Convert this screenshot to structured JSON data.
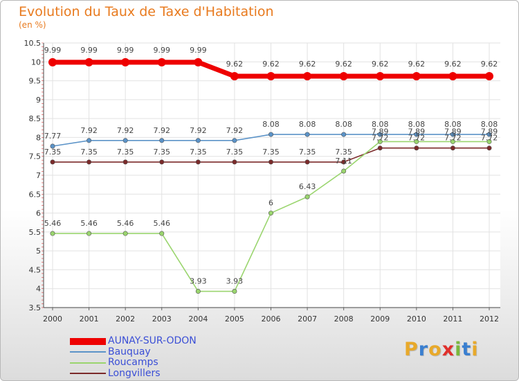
{
  "chart_data": {
    "type": "line",
    "title": "Evolution du Taux de Taxe d'Habitation",
    "ylabel": "(en %)",
    "xlabel": "",
    "x": [
      "2000",
      "2001",
      "2002",
      "2003",
      "2004",
      "2005",
      "2006",
      "2007",
      "2008",
      "2009",
      "2010",
      "2011",
      "2012"
    ],
    "ylim": [
      3.5,
      10.5
    ],
    "yticks": [
      "3.5",
      "4",
      "4.5",
      "5",
      "5.5",
      "6",
      "6.5",
      "7",
      "7.5",
      "8",
      "8.5",
      "9",
      "9.5",
      "10",
      "10.5"
    ],
    "series": [
      {
        "name": "AUNAY-SUR-ODON",
        "color": "#ee0000",
        "values": [
          9.99,
          9.99,
          9.99,
          9.99,
          9.99,
          9.62,
          9.62,
          9.62,
          9.62,
          9.62,
          9.62,
          9.62,
          9.62
        ],
        "labels": [
          "9.99",
          "9.99",
          "9.99",
          "9.99",
          "9.99",
          "9.62",
          "9.62",
          "9.62",
          "9.62",
          "9.62",
          "9.62",
          "9.62",
          "9.62"
        ]
      },
      {
        "name": "Bauquay",
        "color": "#5b93c8",
        "values": [
          7.77,
          7.92,
          7.92,
          7.92,
          7.92,
          7.92,
          8.08,
          8.08,
          8.08,
          8.08,
          8.08,
          8.08,
          8.08
        ],
        "labels": [
          "7.77",
          "7.92",
          "7.92",
          "7.92",
          "7.92",
          "7.92",
          "8.08",
          "8.08",
          "8.08",
          "8.08",
          "8.08",
          "8.08",
          "8.08"
        ]
      },
      {
        "name": "Roucamps",
        "color": "#9ad56e",
        "values": [
          5.46,
          5.46,
          5.46,
          5.46,
          3.93,
          3.93,
          6,
          6.43,
          7.11,
          7.89,
          7.89,
          7.89,
          7.89
        ],
        "labels": [
          "5.46",
          "5.46",
          "5.46",
          "5.46",
          "3.93",
          "3.93",
          "6",
          "6.43",
          "7.11",
          "7.89",
          "7.89",
          "7.89",
          "7.89"
        ]
      },
      {
        "name": "Longvillers",
        "color": "#7b2a2a",
        "values": [
          7.35,
          7.35,
          7.35,
          7.35,
          7.35,
          7.35,
          7.35,
          7.35,
          7.35,
          7.72,
          7.72,
          7.72,
          7.72
        ],
        "labels": [
          "7.35",
          "7.35",
          "7.35",
          "7.35",
          "7.35",
          "7.35",
          "7.35",
          "7.35",
          "7.35",
          "7.72",
          "7.72",
          "7.72",
          "7.72"
        ]
      }
    ]
  },
  "legend": [
    {
      "label": "AUNAY-SUR-ODON"
    },
    {
      "label": "Bauquay"
    },
    {
      "label": "Roucamps"
    },
    {
      "label": "Longvillers"
    }
  ],
  "logo": {
    "letters": [
      "P",
      "r",
      "o",
      "x",
      "i",
      "t",
      "i"
    ],
    "colors": [
      "#e8a92a",
      "#3a7fd0",
      "#e8a92a",
      "#e0302c",
      "#7ab83c",
      "#3a7fd0",
      "#e8a92a"
    ]
  }
}
